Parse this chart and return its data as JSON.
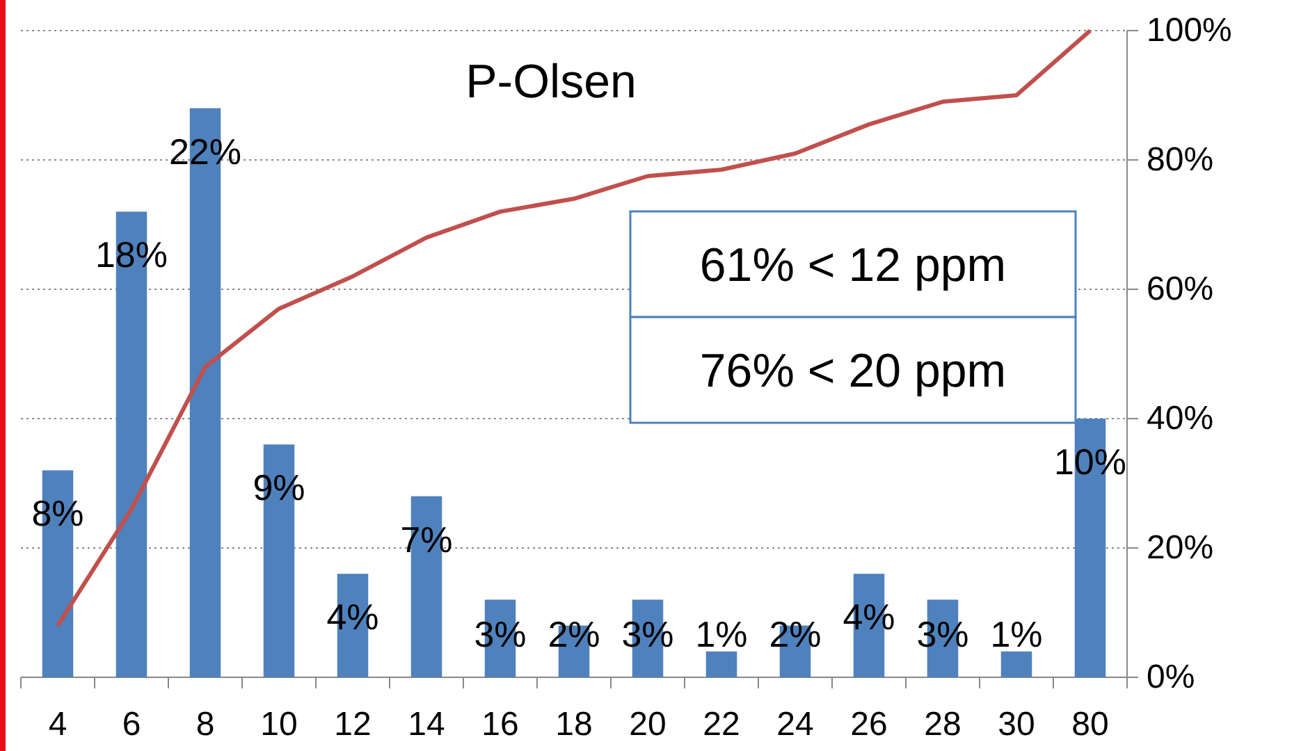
{
  "chart_data": {
    "type": "bar",
    "title": "P-Olsen",
    "categories": [
      "4",
      "6",
      "8",
      "10",
      "12",
      "14",
      "16",
      "18",
      "20",
      "22",
      "24",
      "26",
      "28",
      "30",
      "80"
    ],
    "series": [
      {
        "color": "#4f81bd",
        "values": [
          8,
          18,
          22,
          9,
          4,
          7,
          3,
          2,
          3,
          1,
          2,
          4,
          3,
          1,
          10
        ],
        "value_labels": [
          "8%",
          "18%",
          "22%",
          "9%",
          "4%",
          "7%",
          "3%",
          "2%",
          "3%",
          "1%",
          "2%",
          "4%",
          "3%",
          "1%",
          "10%"
        ]
      },
      {
        "type": "line",
        "axis": "y2",
        "color": "#c0504d",
        "values": [
          8,
          26,
          48,
          57,
          62,
          68,
          72,
          74,
          77.5,
          78.5,
          81,
          85.5,
          89,
          90,
          100
        ]
      }
    ],
    "ylim": [
      0,
      25
    ],
    "y2lim": [
      0,
      100
    ],
    "y2ticks": [
      {
        "value": 0,
        "label": "0%"
      },
      {
        "value": 20,
        "label": "20%"
      },
      {
        "value": 40,
        "label": "40%"
      },
      {
        "value": 60,
        "label": "60%"
      },
      {
        "value": 80,
        "label": "80%"
      },
      {
        "value": 100,
        "label": "100%"
      }
    ],
    "grid": true,
    "marker": "none",
    "line_style": "solid",
    "annotations": [
      "61% < 12 ppm",
      "76% < 20 ppm"
    ]
  }
}
